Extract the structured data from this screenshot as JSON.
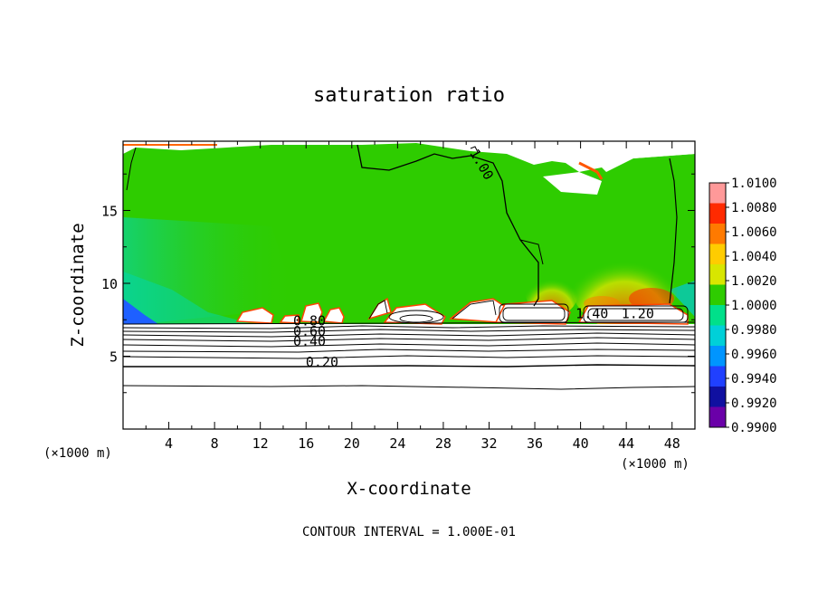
{
  "chart_data": {
    "type": "heatmap",
    "title": "saturation ratio",
    "xlabel": "X-coordinate",
    "ylabel": "Z-coordinate",
    "x_unit": "(×1000 m)",
    "y_unit": "(×1000 m)",
    "xlim": [
      0,
      50
    ],
    "ylim": [
      0,
      19.75
    ],
    "x_ticks": [
      4,
      8,
      12,
      16,
      20,
      24,
      28,
      32,
      36,
      40,
      44,
      48
    ],
    "y_ticks": [
      5,
      10,
      15
    ],
    "colorbar": {
      "labels": [
        "1.0100",
        "1.0080",
        "1.0060",
        "1.0040",
        "1.0020",
        "1.0000",
        "0.9980",
        "0.9960",
        "0.9940",
        "0.9920",
        "0.9900"
      ],
      "colors": [
        "#ff9999",
        "#ff2a00",
        "#ff7a00",
        "#ffcc00",
        "#d8e600",
        "#2ecc00",
        "#00e08a",
        "#00d0d8",
        "#0095ff",
        "#2040ff",
        "#1010a0",
        "#6a00a8"
      ]
    },
    "contour_labels": [
      {
        "text": "0.20",
        "x": 17.4,
        "z": 4.3
      },
      {
        "text": "0.40",
        "x": 16.3,
        "z": 5.7
      },
      {
        "text": "0.60",
        "x": 16.3,
        "z": 6.4
      },
      {
        "text": "0.80",
        "x": 16.3,
        "z": 7.1
      },
      {
        "text": "1.00",
        "x": 31.0,
        "z": 18.0
      },
      {
        "text": "1.20",
        "x": 45.0,
        "z": 7.6
      },
      {
        "text": "1.40",
        "x": 41.0,
        "z": 7.6
      }
    ],
    "footer": "CONTOUR INTERVAL = 1.000E-01"
  }
}
